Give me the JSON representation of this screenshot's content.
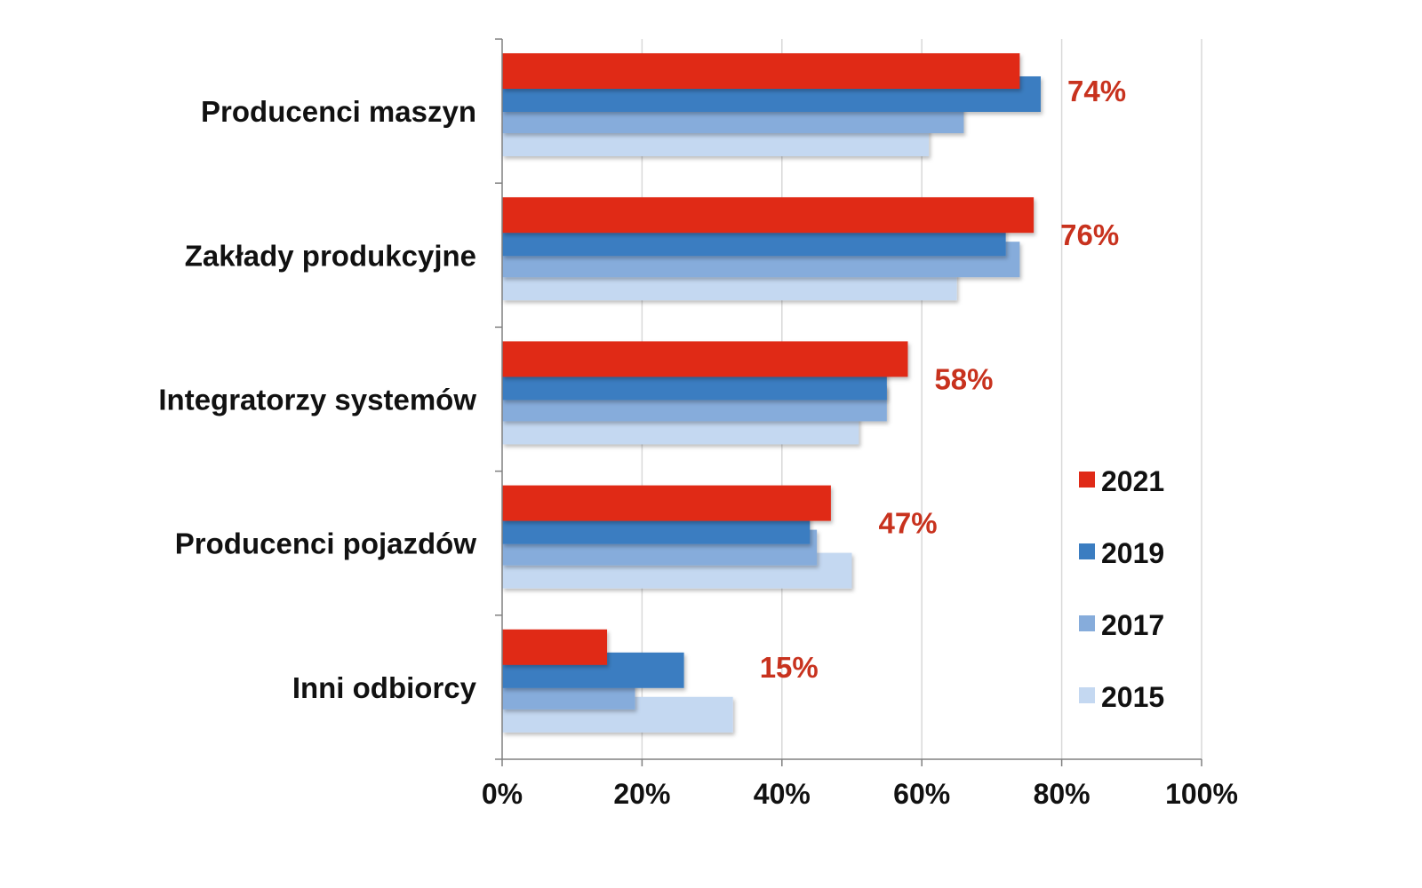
{
  "chart_data": {
    "type": "bar",
    "orientation": "horizontal",
    "title": "",
    "xlabel": "",
    "ylabel": "",
    "xlim": [
      0,
      100
    ],
    "x_ticks": [
      "0%",
      "20%",
      "40%",
      "60%",
      "80%",
      "100%"
    ],
    "grid": "vertical",
    "legend_position": "right",
    "categories": [
      "Producenci maszyn",
      "Zakłady produkcyjne",
      "Integratorzy systemów",
      "Producenci pojazdów",
      "Inni odbiorcy"
    ],
    "series": [
      {
        "name": "2021",
        "color": "#e02a18",
        "values": [
          74,
          76,
          58,
          47,
          15
        ]
      },
      {
        "name": "2019",
        "color": "#3b7dc1",
        "values": [
          77,
          72,
          55,
          44,
          26
        ]
      },
      {
        "name": "2017",
        "color": "#86acdb",
        "values": [
          66,
          74,
          55,
          45,
          19
        ]
      },
      {
        "name": "2015",
        "color": "#c4d8f1",
        "values": [
          61,
          65,
          51,
          50,
          33
        ]
      }
    ],
    "data_labels": [
      "74%",
      "76%",
      "58%",
      "47%",
      "15%"
    ],
    "data_label_color": "#c8321e",
    "legend_order": [
      "2021",
      "2019",
      "2017",
      "2015"
    ]
  }
}
